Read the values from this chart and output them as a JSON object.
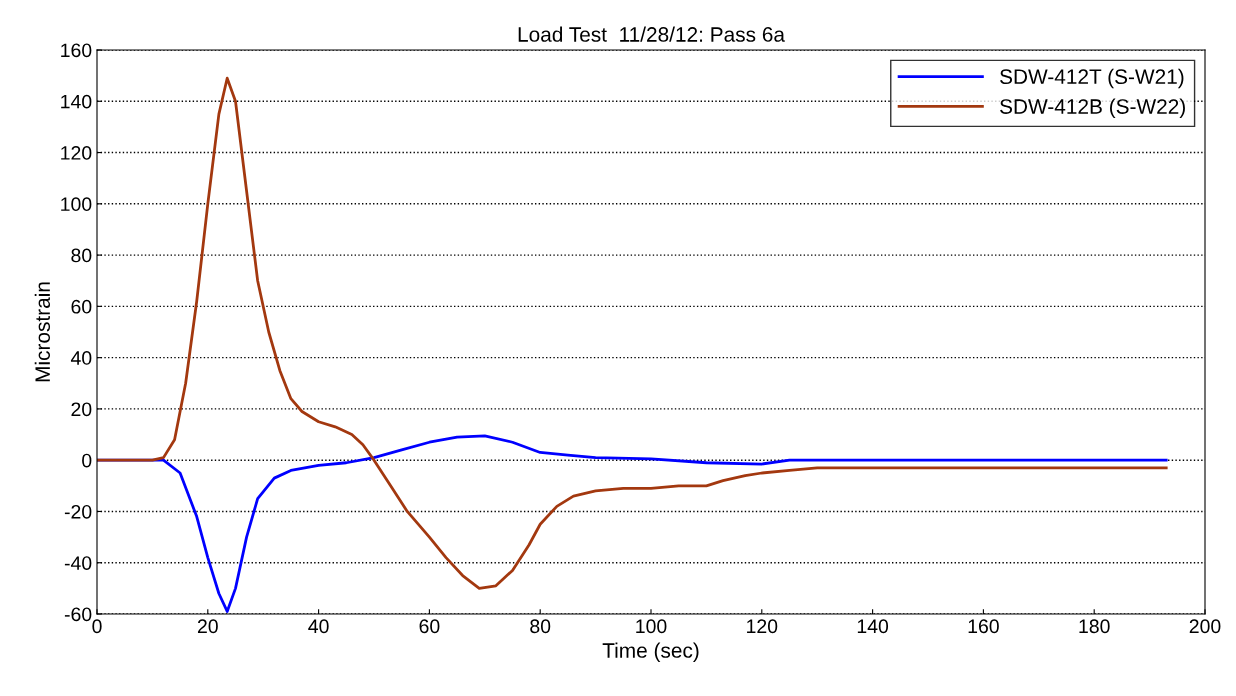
{
  "chart_data": {
    "type": "line",
    "title": "Load Test  11/28/12: Pass 6a",
    "xlabel": "Time (sec)",
    "ylabel": "Microstrain",
    "xlim": [
      0,
      200
    ],
    "xticks": [
      0,
      20,
      40,
      60,
      80,
      100,
      120,
      140,
      160,
      180,
      200
    ],
    "ylim": [
      -60,
      160
    ],
    "yticks": [
      -60,
      -40,
      -20,
      0,
      20,
      40,
      60,
      80,
      100,
      120,
      140,
      160
    ],
    "grid": "y",
    "legend": "top right",
    "line_style": "solid",
    "marker": "none",
    "series": [
      {
        "name": "SDW-412T (S-W21)",
        "color": "#0000ff",
        "x": [
          0,
          5,
          10,
          12,
          15,
          18,
          20,
          22,
          23.5,
          25,
          27,
          29,
          32,
          35,
          40,
          45,
          50,
          55,
          60,
          65,
          70,
          75,
          80,
          85,
          90,
          100,
          110,
          120,
          125,
          140,
          160,
          180,
          193
        ],
        "values": [
          0,
          0,
          0,
          0,
          -5,
          -22,
          -38,
          -52,
          -59,
          -50,
          -30,
          -15,
          -7,
          -4,
          -2,
          -1,
          1,
          4,
          7,
          9,
          9.5,
          7,
          3,
          2,
          1,
          0.5,
          -1,
          -1.5,
          0,
          0,
          0,
          0,
          0
        ]
      },
      {
        "name": "SDW-412B (S-W22)",
        "color": "#a3380f",
        "x": [
          0,
          5,
          10,
          12,
          14,
          16,
          18,
          20,
          22,
          23.5,
          25,
          27,
          29,
          31,
          33,
          35,
          37,
          40,
          43,
          46,
          48,
          50,
          53,
          56,
          60,
          63,
          66,
          69,
          72,
          75,
          78,
          80,
          83,
          86,
          90,
          95,
          100,
          105,
          110,
          113,
          117,
          120,
          125,
          130,
          140,
          160,
          180,
          193
        ],
        "values": [
          0,
          0,
          0,
          1,
          8,
          30,
          62,
          100,
          135,
          149,
          140,
          105,
          70,
          50,
          35,
          24,
          19,
          15,
          13,
          10,
          6,
          0,
          -10,
          -20,
          -30,
          -38,
          -45,
          -50,
          -49,
          -43,
          -33,
          -25,
          -18,
          -14,
          -12,
          -11,
          -11,
          -10,
          -10,
          -8,
          -6,
          -5,
          -4,
          -3,
          -3,
          -3,
          -3,
          -3
        ]
      }
    ]
  }
}
